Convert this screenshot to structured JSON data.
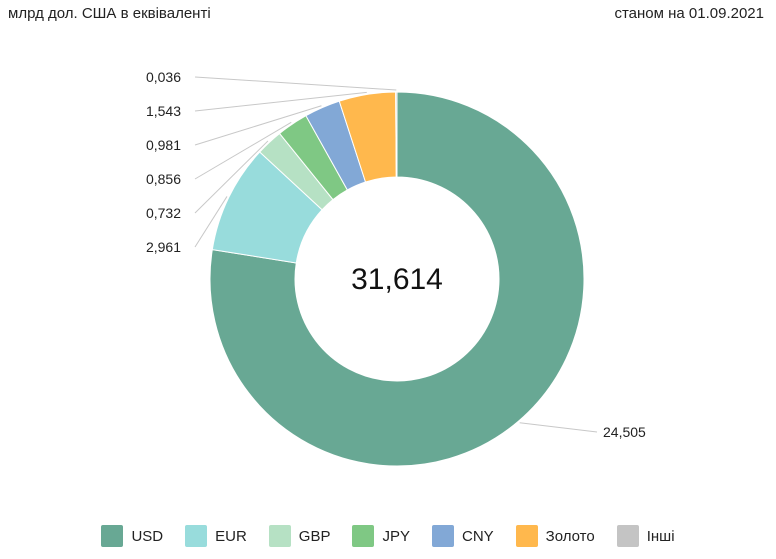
{
  "header": {
    "unit_label": "млрд дол. США в еквіваленті",
    "as_of": "станом на 01.09.2021"
  },
  "chart_data": {
    "type": "pie",
    "variant": "donut",
    "title": "",
    "total_label": "31,614",
    "slices": [
      {
        "name": "USD",
        "value": 24.505,
        "label": "24,505",
        "color": "#68a894"
      },
      {
        "name": "EUR",
        "value": 2.961,
        "label": "2,961",
        "color": "#98dcdc"
      },
      {
        "name": "GBP",
        "value": 0.732,
        "label": "0,732",
        "color": "#b6e1c4"
      },
      {
        "name": "JPY",
        "value": 0.856,
        "label": "0,856",
        "color": "#7fc884"
      },
      {
        "name": "CNY",
        "value": 0.981,
        "label": "0,981",
        "color": "#82a8d6"
      },
      {
        "name": "Золото",
        "value": 1.543,
        "label": "1,543",
        "color": "#ffb84d"
      },
      {
        "name": "Інші",
        "value": 0.036,
        "label": "0,036",
        "color": "#c4c4c4"
      }
    ],
    "legend_position": "bottom"
  }
}
